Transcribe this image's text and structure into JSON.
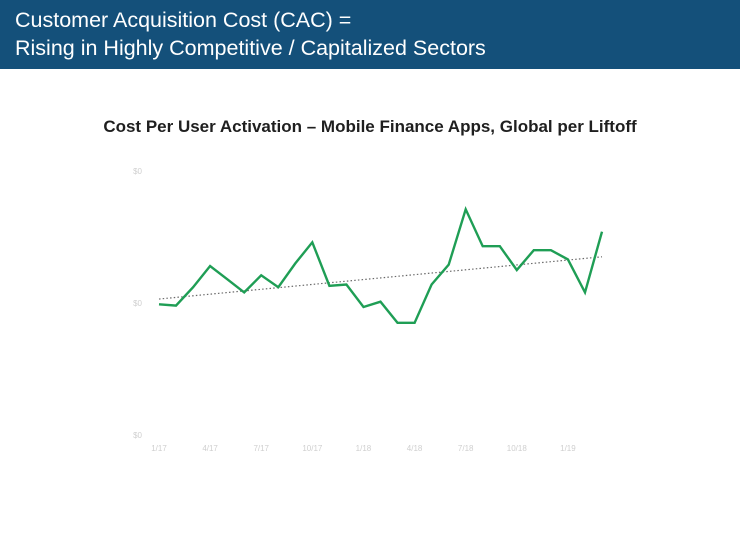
{
  "header": {
    "title_line1": "Customer Acquisition Cost (CAC) =",
    "title_line2": "Rising in Highly Competitive / Capitalized Sectors"
  },
  "colors": {
    "header_bg": "#14507a",
    "series_line": "#1f9e55",
    "trend_line": "#6a6a6a"
  },
  "chart_data": {
    "type": "line",
    "title": "Cost Per User Activation – Mobile Finance Apps, Global per Liftoff",
    "ylabel": "",
    "y_ticks": [
      "$0",
      "$0",
      "$0"
    ],
    "ylim": [
      0,
      100
    ],
    "x_tick_labels": [
      "1/17",
      "4/17",
      "7/17",
      "10/17",
      "1/18",
      "4/18",
      "7/18",
      "10/18",
      "1/19"
    ],
    "tick_every": 3,
    "series": [
      {
        "values": [
          49.5,
          49,
          56,
          64,
          59,
          54,
          60.5,
          56,
          65,
          73,
          56.5,
          57,
          48.5,
          50.5,
          42.5,
          42.5,
          57,
          64.5,
          85.5,
          71.5,
          71.5,
          62.5,
          70,
          70,
          66.5,
          54,
          77
        ]
      }
    ],
    "trendline": {
      "start": 51.5,
      "end": 67.5
    },
    "grid": false,
    "legend": "none"
  }
}
